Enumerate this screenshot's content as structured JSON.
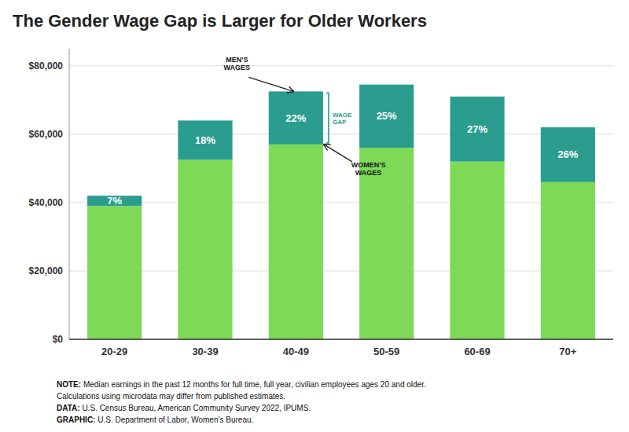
{
  "chart_data": {
    "type": "bar",
    "title": "The Gender Wage Gap is Larger for Older Workers",
    "categories": [
      "20-29",
      "30-39",
      "40-49",
      "50-59",
      "60-69",
      "70+"
    ],
    "stacked": true,
    "series": [
      {
        "color": "#7ED957",
        "values": [
          39000,
          52500,
          57000,
          56000,
          52000,
          46000
        ]
      },
      {
        "color": "#2A9D8F",
        "values": [
          3000,
          11500,
          15500,
          18500,
          19000,
          16000
        ],
        "share_labels": [
          "7%",
          "18%",
          "22%",
          "25%",
          "27%",
          "26%"
        ]
      }
    ],
    "ylim": [
      0,
      85000
    ],
    "yticks": [
      {
        "value": 0,
        "label": "$0"
      },
      {
        "value": 20000,
        "label": "$20,000"
      },
      {
        "value": 40000,
        "label": "$40,000"
      },
      {
        "value": 60000,
        "label": "$60,000"
      },
      {
        "value": 80000,
        "label": "$80,000"
      }
    ],
    "grid": true,
    "annotations": [
      {
        "text": "MEN'S\nWAGES",
        "category": "40-49"
      },
      {
        "text": "WOMEN'S\nWAGES",
        "category": "40-49"
      },
      {
        "text": "WAGE\nGAP",
        "category": "40-49"
      }
    ],
    "notes": [
      "NOTE: Median earnings in the past 12 months for full time, full year, civilian employees ages 20 and older.",
      "Calculations using microdata may differ from published estimates.",
      "DATA: U.S. Census Bureau, American Community Survey 2022, IPUMS.",
      "GRAPHIC: U.S. Department of Labor, Women’s Bureau."
    ]
  }
}
